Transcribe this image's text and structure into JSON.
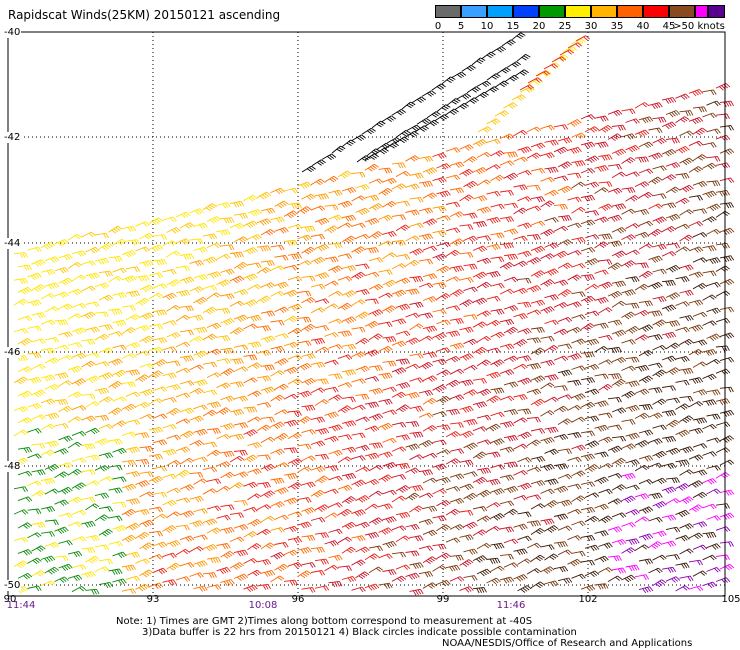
{
  "title": "Rapidscat Winds(25KM) 20150121 ascending",
  "legend": {
    "labels": [
      "0",
      "5",
      "10",
      "15",
      "20",
      "25",
      "30",
      "35",
      "40",
      "45",
      ">50 knots"
    ],
    "colors": [
      "#6a6a6a",
      "#3aa0ff",
      "#00a0ff",
      "#0040ff",
      "#009a00",
      "#ffef00",
      "#ffb400",
      "#ff6000",
      "#ff0000",
      "#8a4a20",
      "#ff00ff",
      "#5a0090"
    ]
  },
  "map": {
    "latitudes": [
      "-40",
      "-42",
      "-44",
      "-46",
      "-48",
      "-50"
    ],
    "longitudes": [
      "90",
      "93",
      "96",
      "99",
      "102",
      "105"
    ],
    "times": [
      "11:44",
      "10:08",
      "11:46"
    ]
  },
  "notes": {
    "line1": "Note: 1) Times are GMT 2)Times along bottom correspond to measurement at -40S",
    "line2": "3)Data buffer is 22 hrs from 20150121 4) Black circles indicate possible contamination",
    "credit": "NOAA/NESDIS/Office of Research and Applications"
  }
}
